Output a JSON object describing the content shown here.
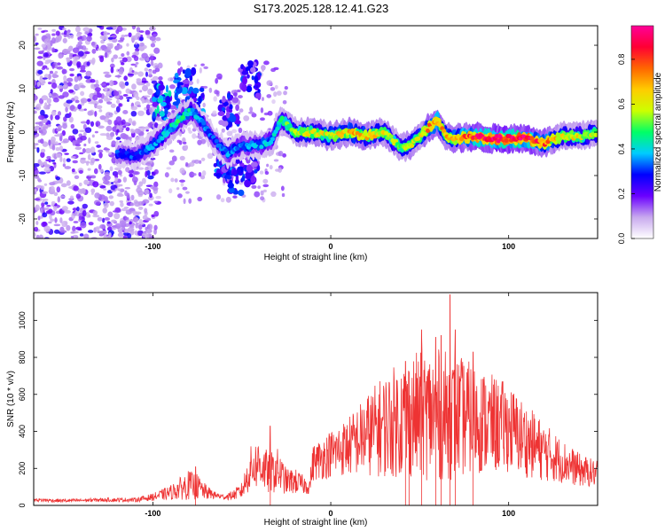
{
  "figure": {
    "title": "S173.2025.128.12.41.G23"
  },
  "chart_data": [
    {
      "type": "heatmap",
      "xlabel": "Height of straight line (km)",
      "ylabel": "Frequency (Hz)",
      "xlim": [
        -167,
        150
      ],
      "ylim": [
        -24.5,
        24.5
      ],
      "xticks": [
        -100,
        0,
        100
      ],
      "xtick_labels": [
        "-100",
        "0",
        "100"
      ],
      "yticks": [
        -20,
        -10,
        0,
        10,
        20
      ],
      "ytick_labels": [
        "-20",
        "-10",
        "0",
        "10",
        "20"
      ],
      "colorbar": {
        "label": "Normalized spectral amplitude",
        "range": [
          0,
          0.95
        ],
        "ticks": [
          0,
          0.2,
          0.4,
          0.6,
          0.8
        ],
        "tick_labels": [
          "0.0",
          "0.2",
          "0.4",
          "0.6",
          "0.8"
        ],
        "colors": [
          "#ffffff",
          "#c8a9ee",
          "#6a00ff",
          "#0000ff",
          "#00ccff",
          "#00ff66",
          "#ccff00",
          "#ffcc00",
          "#ff6600",
          "#ff0033",
          "#ff0099"
        ]
      },
      "ridge": {
        "x": [
          -120,
          -110,
          -100,
          -92,
          -85,
          -78,
          -72,
          -65,
          -58,
          -50,
          -40,
          -33,
          -28,
          -20,
          -10,
          0,
          10,
          20,
          30,
          35,
          40,
          45,
          50,
          55,
          60,
          65,
          70,
          80,
          90,
          100,
          110,
          120,
          130,
          140,
          150
        ],
        "freq": [
          -5,
          -5.5,
          -3,
          0,
          3,
          5,
          2,
          -2,
          -5,
          -3,
          -3,
          -2,
          3,
          0,
          0,
          -1,
          0,
          -1,
          0,
          -2,
          -3.5,
          -3,
          -1,
          1,
          2.5,
          -1,
          -1.5,
          -1,
          -1.5,
          -1.5,
          -1.5,
          -2.5,
          -1,
          -1,
          0
        ],
        "amplitude": [
          0.3,
          0.3,
          0.35,
          0.4,
          0.45,
          0.4,
          0.35,
          0.3,
          0.35,
          0.35,
          0.35,
          0.4,
          0.45,
          0.55,
          0.6,
          0.6,
          0.65,
          0.65,
          0.6,
          0.55,
          0.55,
          0.6,
          0.6,
          0.7,
          0.75,
          0.65,
          0.7,
          0.8,
          0.85,
          0.9,
          0.85,
          0.75,
          0.6,
          0.6,
          0.55
        ]
      },
      "scatter_clusters": [
        {
          "x": -95,
          "freq": 7,
          "amplitude": 0.4
        },
        {
          "x": -82,
          "freq": 10,
          "amplitude": 0.35
        },
        {
          "x": -76,
          "freq": 6,
          "amplitude": 0.35
        },
        {
          "x": -60,
          "freq": -6,
          "amplitude": 0.35
        },
        {
          "x": -57,
          "freq": 5,
          "amplitude": 0.3
        },
        {
          "x": -45,
          "freq": 12,
          "amplitude": 0.3
        },
        {
          "x": -45,
          "freq": -8,
          "amplitude": 0.3
        },
        {
          "x": -55,
          "freq": -10,
          "amplitude": 0.3
        }
      ]
    },
    {
      "type": "line",
      "xlabel": "Height of straight line (km)",
      "ylabel": "SNR (10 * v/v)",
      "xlim": [
        -167,
        150
      ],
      "ylim": [
        0,
        1150
      ],
      "xticks": [
        -100,
        0,
        100
      ],
      "xtick_labels": [
        "-100",
        "0",
        "100"
      ],
      "yticks": [
        0,
        200,
        400,
        600,
        800,
        1000
      ],
      "ytick_labels": [
        "0",
        "200",
        "400",
        "600",
        "800",
        "1000"
      ],
      "color": "#ee3333",
      "envelope": {
        "x": [
          -167,
          -150,
          -130,
          -110,
          -100,
          -90,
          -85,
          -80,
          -75,
          -70,
          -65,
          -60,
          -55,
          -50,
          -45,
          -40,
          -35,
          -30,
          -25,
          -20,
          -15,
          -12,
          -10,
          0,
          10,
          20,
          30,
          40,
          50,
          60,
          70,
          80,
          90,
          100,
          110,
          120,
          130,
          140,
          150
        ],
        "mean": [
          30,
          25,
          30,
          30,
          45,
          70,
          90,
          110,
          100,
          70,
          55,
          45,
          55,
          80,
          200,
          230,
          170,
          190,
          130,
          130,
          110,
          100,
          230,
          280,
          320,
          380,
          430,
          470,
          490,
          490,
          480,
          470,
          440,
          420,
          350,
          290,
          240,
          190,
          170
        ],
        "amplitude": [
          10,
          10,
          10,
          12,
          20,
          40,
          60,
          80,
          70,
          40,
          20,
          15,
          25,
          45,
          120,
          140,
          110,
          120,
          70,
          70,
          50,
          40,
          100,
          130,
          160,
          220,
          280,
          320,
          350,
          360,
          340,
          300,
          270,
          240,
          200,
          160,
          120,
          90,
          70
        ]
      },
      "peaks": [
        {
          "x": 42,
          "y": 780
        },
        {
          "x": 51,
          "y": 950
        },
        {
          "x": 59,
          "y": 910
        },
        {
          "x": 62,
          "y": 920
        },
        {
          "x": 67,
          "y": 1140
        },
        {
          "x": 70,
          "y": 950
        },
        {
          "x": 80,
          "y": 830
        },
        {
          "x": 44,
          "y": 720
        },
        {
          "x": -34,
          "y": 430
        },
        {
          "x": -76,
          "y": 210
        }
      ]
    }
  ]
}
